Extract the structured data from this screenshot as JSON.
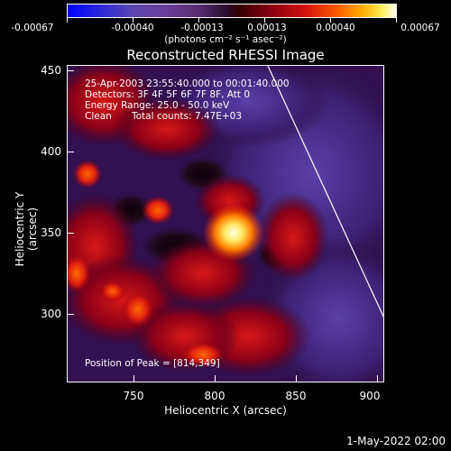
{
  "colorbar": {
    "tick_labels": [
      "-0.00067",
      "-0.00040",
      "-0.00013",
      "0.00013",
      "0.00040",
      "0.00067"
    ],
    "units": "(photons cm⁻² s⁻¹ asec⁻²)"
  },
  "plot": {
    "title": "Reconstructed RHESSI Image",
    "xlabel": "Heliocentric X (arcsec)",
    "ylabel": "Heliocentric Y (arcsec)",
    "xticks": [
      "750",
      "800",
      "850",
      "900"
    ],
    "yticks": [
      "450",
      "400",
      "350",
      "300"
    ],
    "info": {
      "line1": "25-Apr-2003 23:55:40.000 to 00:01:40.000",
      "line2": "Detectors: 3F 4F 5F 6F 7F 8F, Att 0",
      "line3": "Energy Range: 25.0 - 50.0 keV",
      "line4_a": "Clean",
      "line4_b": "Total counts: 7.47E+03"
    },
    "peak_text": "Position of Peak = [814,349]"
  },
  "footer": {
    "date": "1-May-2022 02:00"
  },
  "colors": {
    "background": "#000000",
    "foreground": "#ffffff",
    "peak": "#fff7c0",
    "hot": "#ff5a00",
    "cool": "#5b2d8a"
  }
}
